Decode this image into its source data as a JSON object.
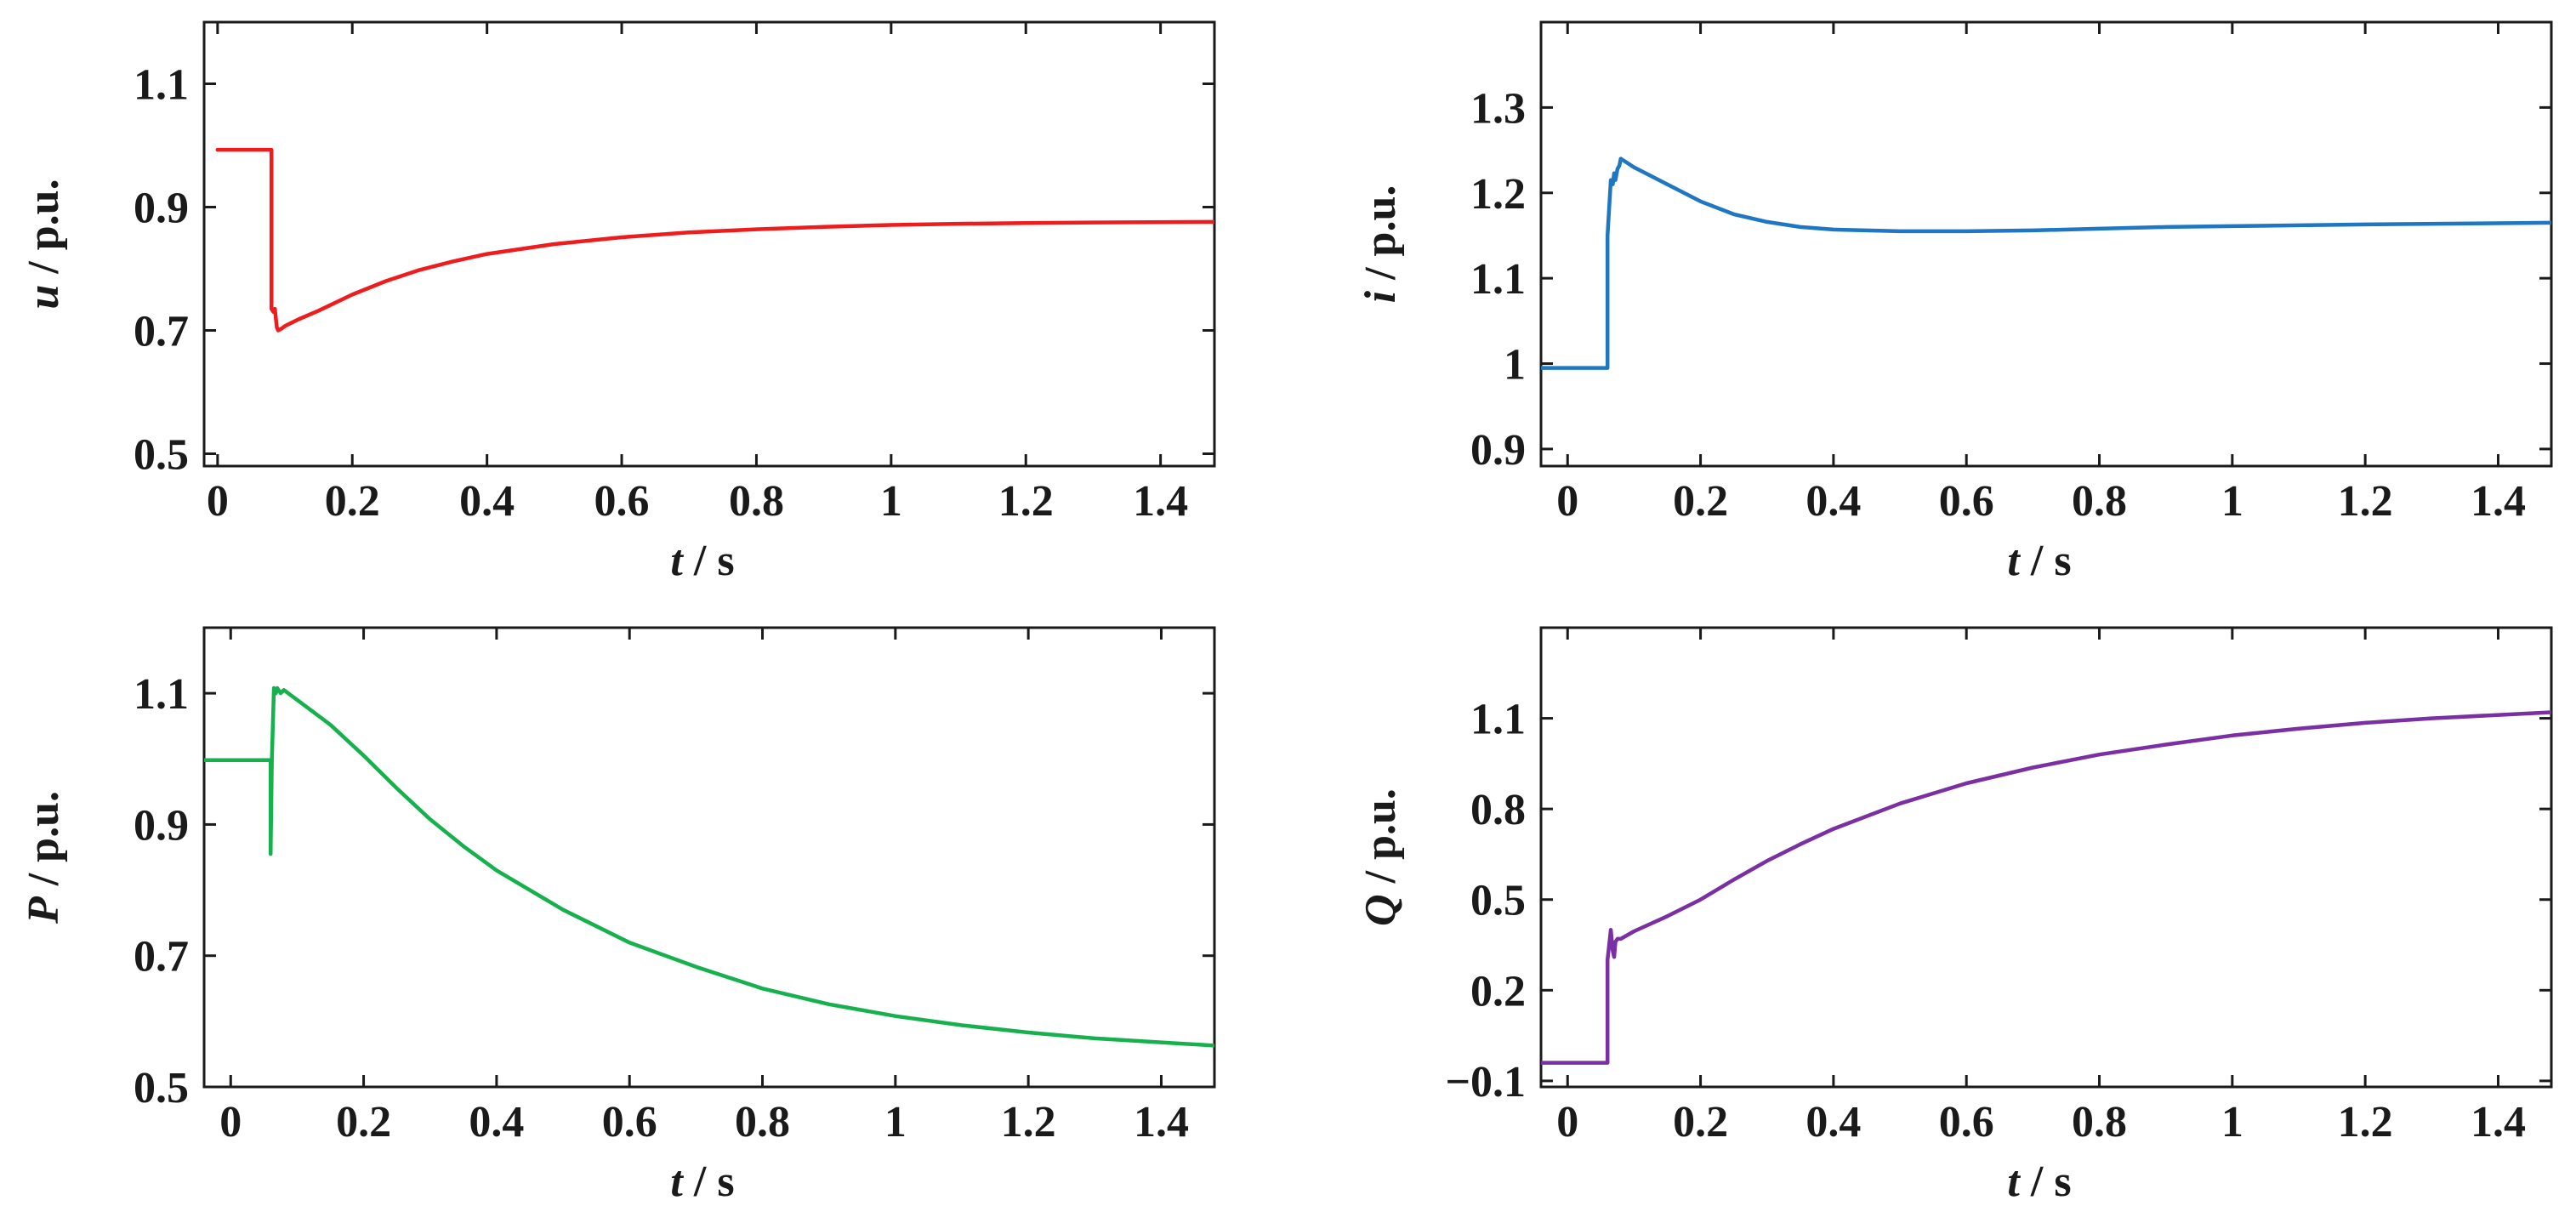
{
  "chart_data": [
    {
      "id": "u",
      "type": "line",
      "xlabel": {
        "var": "t",
        "unit": " / s"
      },
      "ylabel": {
        "var": "u",
        "unit": " / p.u."
      },
      "xlim": [
        -0.02,
        1.48
      ],
      "ylim": [
        0.48,
        1.2
      ],
      "xticks": [
        0,
        0.2,
        0.4,
        0.6,
        0.8,
        1,
        1.2,
        1.4
      ],
      "xtick_labels": [
        "0",
        "0.2",
        "0.4",
        "0.6",
        "0.8",
        "1",
        "1.2",
        "1.4"
      ],
      "yticks": [
        0.5,
        0.7,
        0.9,
        1.1
      ],
      "ytick_labels": [
        "0.5",
        "0.7",
        "0.9",
        "1.1"
      ],
      "color": "#ee1c1c",
      "series": [
        {
          "name": "u",
          "x": [
            0,
            0.08,
            0.08,
            0.083,
            0.085,
            0.088,
            0.09,
            0.095,
            0.1,
            0.12,
            0.15,
            0.2,
            0.25,
            0.3,
            0.35,
            0.4,
            0.5,
            0.6,
            0.7,
            0.8,
            0.9,
            1.0,
            1.1,
            1.2,
            1.3,
            1.48
          ],
          "y": [
            0.993,
            0.993,
            0.735,
            0.73,
            0.735,
            0.705,
            0.7,
            0.703,
            0.707,
            0.718,
            0.732,
            0.758,
            0.78,
            0.798,
            0.812,
            0.824,
            0.84,
            0.851,
            0.859,
            0.864,
            0.868,
            0.871,
            0.873,
            0.874,
            0.875,
            0.876
          ]
        }
      ]
    },
    {
      "id": "i",
      "type": "line",
      "xlabel": {
        "var": "t",
        "unit": " / s"
      },
      "ylabel": {
        "var": "i",
        "unit": " / p.u."
      },
      "xlim": [
        -0.04,
        1.48
      ],
      "ylim": [
        0.88,
        1.4
      ],
      "xticks": [
        0,
        0.2,
        0.4,
        0.6,
        0.8,
        1,
        1.2,
        1.4
      ],
      "xtick_labels": [
        "0",
        "0.2",
        "0.4",
        "0.6",
        "0.8",
        "1",
        "1.2",
        "1.4"
      ],
      "yticks": [
        0.9,
        1,
        1.1,
        1.2,
        1.3
      ],
      "ytick_labels": [
        "0.9",
        "1",
        "1.1",
        "1.2",
        "1.3"
      ],
      "color": "#1f77c4",
      "series": [
        {
          "name": "i",
          "x": [
            -0.04,
            0.06,
            0.06,
            0.065,
            0.068,
            0.07,
            0.072,
            0.075,
            0.078,
            0.08,
            0.09,
            0.1,
            0.12,
            0.15,
            0.2,
            0.25,
            0.3,
            0.35,
            0.4,
            0.5,
            0.6,
            0.7,
            0.8,
            0.9,
            1.0,
            1.2,
            1.48
          ],
          "y": [
            0.995,
            0.995,
            1.15,
            1.215,
            1.21,
            1.223,
            1.215,
            1.228,
            1.232,
            1.24,
            1.235,
            1.23,
            1.222,
            1.21,
            1.19,
            1.175,
            1.166,
            1.16,
            1.157,
            1.155,
            1.155,
            1.156,
            1.158,
            1.16,
            1.161,
            1.163,
            1.165
          ]
        }
      ]
    },
    {
      "id": "P",
      "type": "line",
      "xlabel": {
        "var": "t",
        "unit": " / s"
      },
      "ylabel": {
        "var": "P",
        "unit": " / p.u."
      },
      "xlim": [
        -0.04,
        1.48
      ],
      "ylim": [
        0.5,
        1.2
      ],
      "xticks": [
        0,
        0.2,
        0.4,
        0.6,
        0.8,
        1,
        1.2,
        1.4
      ],
      "xtick_labels": [
        "0",
        "0.2",
        "0.4",
        "0.6",
        "0.8",
        "1",
        "1.2",
        "1.4"
      ],
      "yticks": [
        0.5,
        0.7,
        0.9,
        1.1
      ],
      "ytick_labels": [
        "0.5",
        "0.7",
        "0.9",
        "1.1"
      ],
      "color": "#16b14d",
      "series": [
        {
          "name": "P",
          "x": [
            -0.04,
            0.06,
            0.06,
            0.062,
            0.065,
            0.068,
            0.07,
            0.075,
            0.08,
            0.1,
            0.15,
            0.2,
            0.25,
            0.3,
            0.35,
            0.4,
            0.5,
            0.6,
            0.7,
            0.8,
            0.9,
            1.0,
            1.1,
            1.2,
            1.3,
            1.48
          ],
          "y": [
            0.998,
            0.998,
            0.855,
            1.0,
            1.108,
            1.1,
            1.108,
            1.1,
            1.105,
            1.09,
            1.052,
            1.005,
            0.955,
            0.908,
            0.867,
            0.83,
            0.77,
            0.72,
            0.683,
            0.65,
            0.626,
            0.608,
            0.594,
            0.583,
            0.574,
            0.563
          ]
        }
      ]
    },
    {
      "id": "Q",
      "type": "line",
      "xlabel": {
        "var": "t",
        "unit": " / s"
      },
      "ylabel": {
        "var": "Q",
        "unit": " / p.u."
      },
      "xlim": [
        -0.04,
        1.48
      ],
      "ylim": [
        -0.12,
        1.4
      ],
      "xticks": [
        0,
        0.2,
        0.4,
        0.6,
        0.8,
        1,
        1.2,
        1.4
      ],
      "xtick_labels": [
        "0",
        "0.2",
        "0.4",
        "0.6",
        "0.8",
        "1",
        "1.2",
        "1.4"
      ],
      "yticks": [
        -0.1,
        0.2,
        0.5,
        0.8,
        1.1
      ],
      "ytick_labels": [
        "−0.1",
        "0.2",
        "0.5",
        "0.8",
        "1.1"
      ],
      "color": "#7a2fa3",
      "series": [
        {
          "name": "Q",
          "x": [
            -0.04,
            0.06,
            0.06,
            0.065,
            0.068,
            0.07,
            0.072,
            0.075,
            0.08,
            0.1,
            0.15,
            0.2,
            0.25,
            0.3,
            0.35,
            0.4,
            0.5,
            0.6,
            0.7,
            0.8,
            0.9,
            1.0,
            1.1,
            1.2,
            1.3,
            1.48
          ],
          "y": [
            -0.04,
            -0.04,
            0.3,
            0.4,
            0.33,
            0.31,
            0.36,
            0.37,
            0.37,
            0.395,
            0.445,
            0.5,
            0.566,
            0.628,
            0.683,
            0.734,
            0.818,
            0.885,
            0.937,
            0.98,
            1.013,
            1.043,
            1.066,
            1.085,
            1.1,
            1.12
          ]
        }
      ]
    }
  ]
}
